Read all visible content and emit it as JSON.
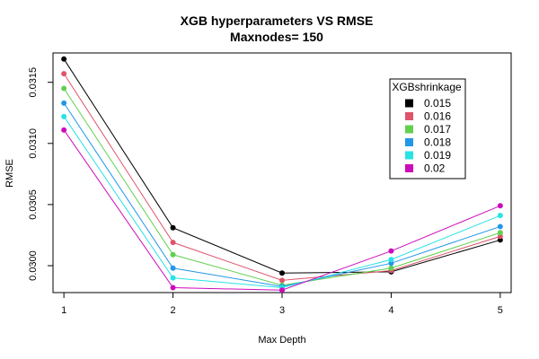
{
  "chart_data": {
    "type": "line",
    "title": "XGB hyperparameters VS RMSE",
    "subtitle": "Maxnodes= 150",
    "xlabel": "Max Depth",
    "ylabel": "RMSE",
    "x": [
      1,
      2,
      3,
      4,
      5
    ],
    "x_ticks": [
      "1",
      "2",
      "3",
      "4",
      "5"
    ],
    "y_ticks": [
      "0.0300",
      "0.0305",
      "0.0310",
      "0.0315"
    ],
    "y_tick_values": [
      0.03,
      0.0305,
      0.031,
      0.0315
    ],
    "xlim": [
      0.9,
      5.1
    ],
    "ylim": [
      0.02978,
      0.03174
    ],
    "grid": false,
    "legend": {
      "title": "XGBshrinkage",
      "position": "top-right"
    },
    "series": [
      {
        "name": "0.015",
        "color": "#000000",
        "values": [
          0.03169,
          0.03031,
          0.02994,
          0.02995,
          0.03021
        ]
      },
      {
        "name": "0.016",
        "color": "#DF536B",
        "values": [
          0.03157,
          0.03019,
          0.02988,
          0.02996,
          0.03024
        ]
      },
      {
        "name": "0.017",
        "color": "#61D04F",
        "values": [
          0.03145,
          0.03009,
          0.02984,
          0.02998,
          0.03027
        ]
      },
      {
        "name": "0.018",
        "color": "#2297E6",
        "values": [
          0.03133,
          0.02998,
          0.02983,
          0.03002,
          0.03032
        ]
      },
      {
        "name": "0.019",
        "color": "#28E2E5",
        "values": [
          0.03122,
          0.0299,
          0.02982,
          0.03005,
          0.03041
        ]
      },
      {
        "name": "0.02",
        "color": "#CD0BBC",
        "values": [
          0.03111,
          0.02982,
          0.0298,
          0.03012,
          0.03049
        ]
      }
    ]
  }
}
